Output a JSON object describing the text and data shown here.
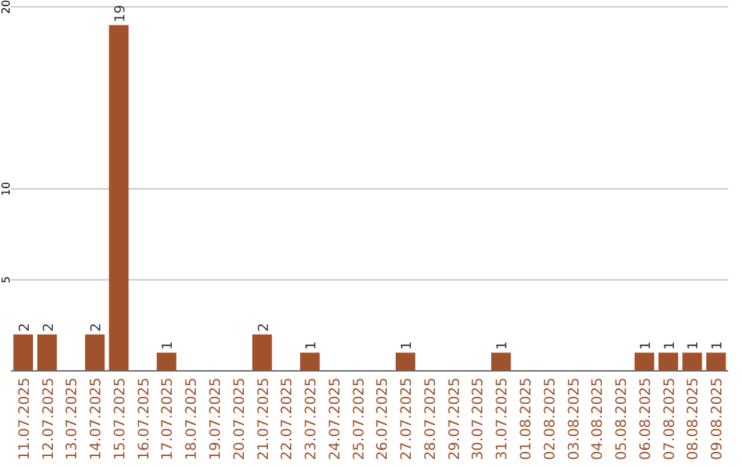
{
  "chart_data": {
    "type": "bar",
    "categories": [
      "11.07.2025",
      "12.07.2025",
      "13.07.2025",
      "14.07.2025",
      "15.07.2025",
      "16.07.2025",
      "17.07.2025",
      "18.07.2025",
      "19.07.2025",
      "20.07.2025",
      "21.07.2025",
      "22.07.2025",
      "23.07.2025",
      "24.07.2025",
      "25.07.2025",
      "26.07.2025",
      "27.07.2025",
      "28.07.2025",
      "29.07.2025",
      "30.07.2025",
      "31.07.2025",
      "01.08.2025",
      "02.08.2025",
      "03.08.2025",
      "04.08.2025",
      "05.08.2025",
      "06.08.2025",
      "07.08.2025",
      "08.08.2025",
      "09.08.2025"
    ],
    "values": [
      2,
      2,
      0,
      2,
      19,
      0,
      1,
      0,
      0,
      0,
      2,
      0,
      1,
      0,
      0,
      0,
      1,
      0,
      0,
      0,
      1,
      0,
      0,
      0,
      0,
      0,
      1,
      1,
      1,
      1
    ],
    "value_labels": [
      "2",
      "2",
      null,
      "2",
      "19",
      null,
      "1",
      null,
      null,
      null,
      "2",
      null,
      "1",
      null,
      null,
      null,
      "1",
      null,
      null,
      null,
      "1",
      null,
      null,
      null,
      null,
      null,
      "1",
      "1",
      "1",
      "1"
    ],
    "color": "#a0522d",
    "ylim": [
      0,
      20
    ],
    "yticks": [
      5,
      10,
      20
    ],
    "grid": "y"
  }
}
